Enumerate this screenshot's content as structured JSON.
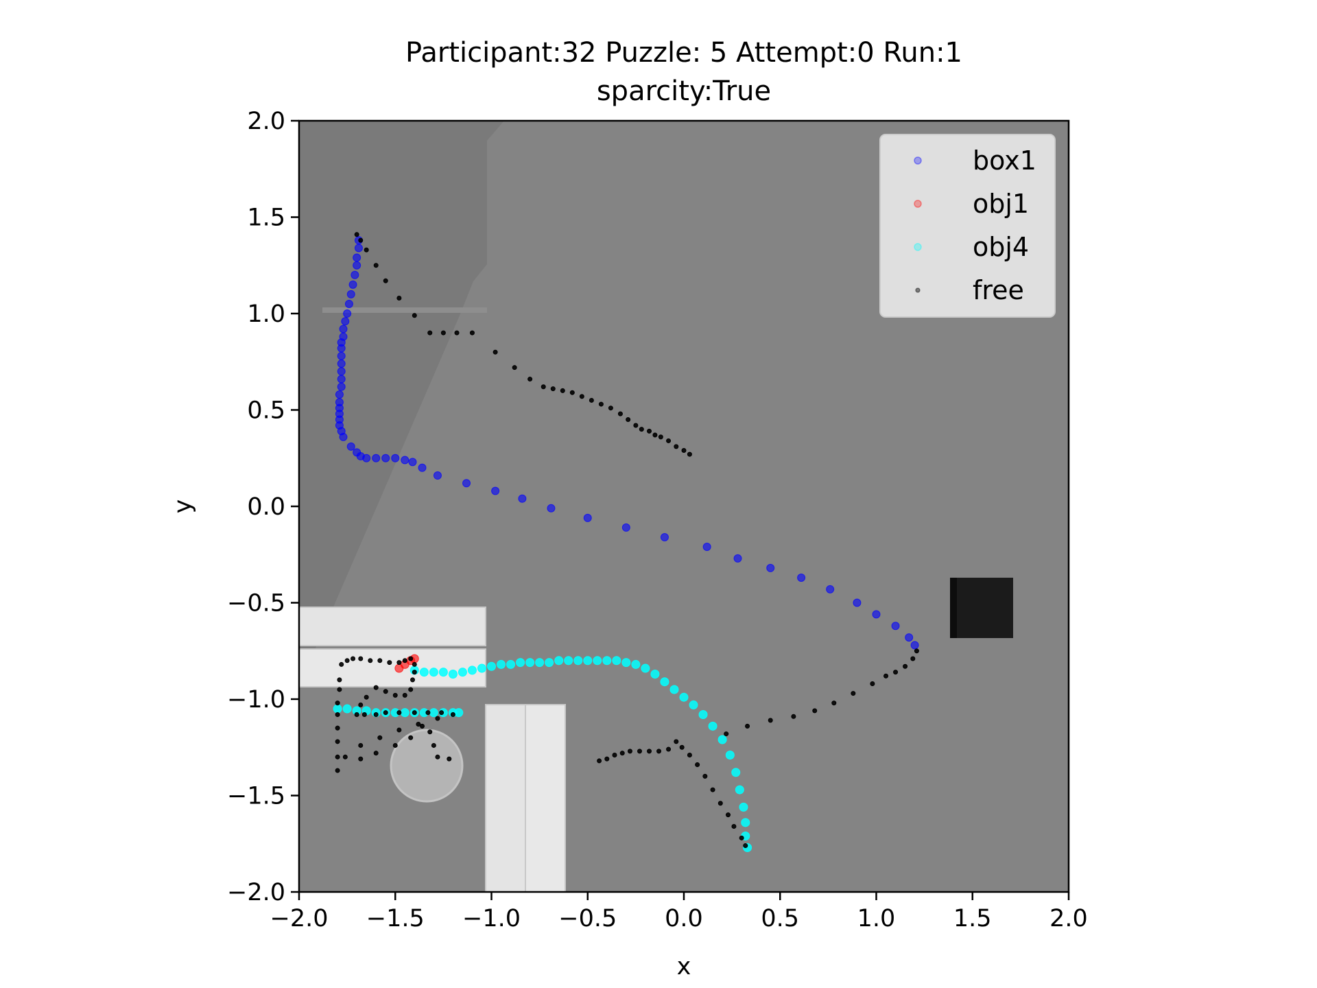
{
  "chart_data": {
    "type": "scatter",
    "title_line1": "Participant:32 Puzzle: 5 Attempt:0 Run:1",
    "title_line2": "sparcity:True",
    "xlabel": "x",
    "ylabel": "y",
    "xlim": [
      -2.0,
      2.0
    ],
    "ylim": [
      -2.0,
      2.0
    ],
    "xticks": [
      "−2.0",
      "−1.5",
      "−1.0",
      "−0.5",
      "0.0",
      "0.5",
      "1.0",
      "1.5",
      "2.0"
    ],
    "yticks": [
      "2.0",
      "1.5",
      "1.0",
      "0.5",
      "0.0",
      "−0.5",
      "−1.0",
      "−1.5",
      "−2.0"
    ],
    "legend_position": "top-right",
    "background_image": "top-down simulation scene",
    "series": [
      {
        "name": "box1",
        "color": "#0000ff",
        "points": [
          [
            -1.69,
            1.38
          ],
          [
            -1.69,
            1.34
          ],
          [
            -1.7,
            1.29
          ],
          [
            -1.7,
            1.25
          ],
          [
            -1.71,
            1.2
          ],
          [
            -1.72,
            1.15
          ],
          [
            -1.73,
            1.1
          ],
          [
            -1.74,
            1.05
          ],
          [
            -1.75,
            1.0
          ],
          [
            -1.76,
            0.96
          ],
          [
            -1.77,
            0.92
          ],
          [
            -1.77,
            0.88
          ],
          [
            -1.78,
            0.85
          ],
          [
            -1.78,
            0.82
          ],
          [
            -1.78,
            0.78
          ],
          [
            -1.78,
            0.74
          ],
          [
            -1.78,
            0.7
          ],
          [
            -1.78,
            0.66
          ],
          [
            -1.78,
            0.62
          ],
          [
            -1.79,
            0.58
          ],
          [
            -1.79,
            0.54
          ],
          [
            -1.79,
            0.51
          ],
          [
            -1.79,
            0.48
          ],
          [
            -1.79,
            0.45
          ],
          [
            -1.79,
            0.42
          ],
          [
            -1.78,
            0.39
          ],
          [
            -1.77,
            0.36
          ],
          [
            -1.73,
            0.31
          ],
          [
            -1.7,
            0.28
          ],
          [
            -1.68,
            0.26
          ],
          [
            -1.65,
            0.25
          ],
          [
            -1.6,
            0.25
          ],
          [
            -1.55,
            0.25
          ],
          [
            -1.5,
            0.25
          ],
          [
            -1.45,
            0.24
          ],
          [
            -1.41,
            0.23
          ],
          [
            -1.36,
            0.2
          ],
          [
            -1.28,
            0.16
          ],
          [
            -1.13,
            0.12
          ],
          [
            -0.98,
            0.08
          ],
          [
            -0.84,
            0.04
          ],
          [
            -0.69,
            -0.01
          ],
          [
            -0.5,
            -0.06
          ],
          [
            -0.3,
            -0.11
          ],
          [
            -0.1,
            -0.16
          ],
          [
            0.12,
            -0.21
          ],
          [
            0.28,
            -0.27
          ],
          [
            0.45,
            -0.32
          ],
          [
            0.61,
            -0.37
          ],
          [
            0.76,
            -0.43
          ],
          [
            0.9,
            -0.5
          ],
          [
            1.0,
            -0.56
          ],
          [
            1.1,
            -0.62
          ],
          [
            1.17,
            -0.68
          ],
          [
            1.2,
            -0.72
          ]
        ]
      },
      {
        "name": "obj1",
        "color": "#ff0000",
        "points": [
          [
            -1.4,
            -0.79
          ],
          [
            -1.42,
            -0.8
          ],
          [
            -1.45,
            -0.82
          ],
          [
            -1.48,
            -0.84
          ]
        ]
      },
      {
        "name": "obj4",
        "color": "#00ffff",
        "points": [
          [
            -1.4,
            -0.85
          ],
          [
            -1.35,
            -0.86
          ],
          [
            -1.3,
            -0.86
          ],
          [
            -1.25,
            -0.86
          ],
          [
            -1.2,
            -0.87
          ],
          [
            -1.15,
            -0.86
          ],
          [
            -1.1,
            -0.85
          ],
          [
            -1.05,
            -0.84
          ],
          [
            -1.0,
            -0.83
          ],
          [
            -0.95,
            -0.82
          ],
          [
            -0.9,
            -0.82
          ],
          [
            -0.85,
            -0.81
          ],
          [
            -0.8,
            -0.81
          ],
          [
            -0.75,
            -0.81
          ],
          [
            -0.7,
            -0.81
          ],
          [
            -0.65,
            -0.8
          ],
          [
            -0.6,
            -0.8
          ],
          [
            -0.55,
            -0.8
          ],
          [
            -0.5,
            -0.8
          ],
          [
            -0.45,
            -0.8
          ],
          [
            -0.4,
            -0.8
          ],
          [
            -0.35,
            -0.8
          ],
          [
            -0.3,
            -0.81
          ],
          [
            -0.25,
            -0.82
          ],
          [
            -0.2,
            -0.84
          ],
          [
            -0.15,
            -0.87
          ],
          [
            -0.1,
            -0.91
          ],
          [
            -0.05,
            -0.95
          ],
          [
            0.0,
            -0.99
          ],
          [
            0.05,
            -1.03
          ],
          [
            0.1,
            -1.08
          ],
          [
            0.15,
            -1.14
          ],
          [
            0.2,
            -1.21
          ],
          [
            0.24,
            -1.29
          ],
          [
            0.27,
            -1.38
          ],
          [
            0.29,
            -1.47
          ],
          [
            0.31,
            -1.56
          ],
          [
            0.32,
            -1.64
          ],
          [
            0.32,
            -1.71
          ],
          [
            0.33,
            -1.77
          ],
          [
            -1.8,
            -1.05
          ],
          [
            -1.75,
            -1.05
          ],
          [
            -1.7,
            -1.06
          ],
          [
            -1.65,
            -1.06
          ],
          [
            -1.6,
            -1.07
          ],
          [
            -1.55,
            -1.07
          ],
          [
            -1.5,
            -1.07
          ],
          [
            -1.45,
            -1.07
          ],
          [
            -1.4,
            -1.07
          ],
          [
            -1.35,
            -1.07
          ],
          [
            -1.3,
            -1.07
          ],
          [
            -1.25,
            -1.07
          ],
          [
            -1.2,
            -1.07
          ],
          [
            -1.17,
            -1.07
          ]
        ]
      },
      {
        "name": "free",
        "color": "#000000",
        "points": [
          [
            0.03,
            0.27
          ],
          [
            0.0,
            0.29
          ],
          [
            -0.04,
            0.31
          ],
          [
            -0.08,
            0.34
          ],
          [
            -0.12,
            0.36
          ],
          [
            -0.15,
            0.37
          ],
          [
            -0.18,
            0.39
          ],
          [
            -0.22,
            0.4
          ],
          [
            -0.25,
            0.42
          ],
          [
            -0.29,
            0.45
          ],
          [
            -0.33,
            0.48
          ],
          [
            -0.38,
            0.51
          ],
          [
            -0.43,
            0.53
          ],
          [
            -0.48,
            0.55
          ],
          [
            -0.53,
            0.57
          ],
          [
            -0.58,
            0.59
          ],
          [
            -0.63,
            0.6
          ],
          [
            -0.68,
            0.61
          ],
          [
            -0.73,
            0.62
          ],
          [
            -0.8,
            0.66
          ],
          [
            -0.88,
            0.72
          ],
          [
            -0.98,
            0.8
          ],
          [
            -1.1,
            0.9
          ],
          [
            -1.18,
            0.9
          ],
          [
            -1.25,
            0.9
          ],
          [
            -1.32,
            0.9
          ],
          [
            -1.4,
            0.99
          ],
          [
            -1.48,
            1.08
          ],
          [
            -1.55,
            1.17
          ],
          [
            -1.6,
            1.25
          ],
          [
            -1.65,
            1.33
          ],
          [
            -1.68,
            1.38
          ],
          [
            -1.7,
            1.41
          ],
          [
            1.21,
            -0.75
          ],
          [
            1.19,
            -0.79
          ],
          [
            1.15,
            -0.83
          ],
          [
            1.1,
            -0.86
          ],
          [
            1.05,
            -0.88
          ],
          [
            0.98,
            -0.92
          ],
          [
            0.88,
            -0.97
          ],
          [
            0.78,
            -1.02
          ],
          [
            0.68,
            -1.06
          ],
          [
            0.57,
            -1.09
          ],
          [
            0.45,
            -1.11
          ],
          [
            0.33,
            -1.14
          ],
          [
            0.22,
            -1.18
          ],
          [
            0.32,
            -1.76
          ],
          [
            0.3,
            -1.72
          ],
          [
            0.26,
            -1.66
          ],
          [
            0.23,
            -1.6
          ],
          [
            0.19,
            -1.54
          ],
          [
            0.15,
            -1.47
          ],
          [
            0.11,
            -1.4
          ],
          [
            0.07,
            -1.34
          ],
          [
            0.03,
            -1.29
          ],
          [
            -0.01,
            -1.25
          ],
          [
            -0.04,
            -1.22
          ],
          [
            -0.08,
            -1.26
          ],
          [
            -0.13,
            -1.27
          ],
          [
            -0.18,
            -1.27
          ],
          [
            -0.23,
            -1.27
          ],
          [
            -0.28,
            -1.27
          ],
          [
            -0.32,
            -1.28
          ],
          [
            -0.36,
            -1.29
          ],
          [
            -0.4,
            -1.31
          ],
          [
            -0.44,
            -1.32
          ],
          [
            -1.8,
            -1.37
          ],
          [
            -1.8,
            -1.3
          ],
          [
            -1.8,
            -1.22
          ],
          [
            -1.8,
            -1.15
          ],
          [
            -1.8,
            -1.08
          ],
          [
            -1.8,
            -1.02
          ],
          [
            -1.79,
            -0.95
          ],
          [
            -1.79,
            -0.9
          ],
          [
            -1.78,
            -0.82
          ],
          [
            -1.75,
            -0.8
          ],
          [
            -1.72,
            -0.79
          ],
          [
            -1.68,
            -0.79
          ],
          [
            -1.63,
            -0.8
          ],
          [
            -1.58,
            -0.8
          ],
          [
            -1.53,
            -0.81
          ],
          [
            -1.48,
            -0.81
          ],
          [
            -1.45,
            -0.8
          ],
          [
            -1.42,
            -0.79
          ],
          [
            -1.4,
            -0.82
          ],
          [
            -1.4,
            -0.86
          ],
          [
            -1.41,
            -0.9
          ],
          [
            -1.42,
            -0.95
          ],
          [
            -1.45,
            -0.98
          ],
          [
            -1.5,
            -0.98
          ],
          [
            -1.55,
            -0.96
          ],
          [
            -1.6,
            -0.94
          ],
          [
            -1.65,
            -0.99
          ],
          [
            -1.68,
            -1.03
          ],
          [
            -1.7,
            -1.08
          ],
          [
            -1.66,
            -1.08
          ],
          [
            -1.6,
            -1.08
          ],
          [
            -1.55,
            -1.07
          ],
          [
            -1.48,
            -1.07
          ],
          [
            -1.4,
            -1.07
          ],
          [
            -1.33,
            -1.07
          ],
          [
            -1.26,
            -1.07
          ],
          [
            -1.2,
            -1.08
          ],
          [
            -1.28,
            -1.1
          ],
          [
            -1.38,
            -1.13
          ],
          [
            -1.48,
            -1.16
          ],
          [
            -1.58,
            -1.2
          ],
          [
            -1.68,
            -1.24
          ],
          [
            -1.76,
            -1.3
          ],
          [
            -1.68,
            -1.31
          ],
          [
            -1.6,
            -1.28
          ],
          [
            -1.5,
            -1.24
          ],
          [
            -1.42,
            -1.2
          ],
          [
            -1.36,
            -1.14
          ],
          [
            -1.32,
            -1.17
          ],
          [
            -1.3,
            -1.24
          ],
          [
            -1.28,
            -1.3
          ],
          [
            -1.22,
            -1.31
          ]
        ]
      }
    ]
  }
}
